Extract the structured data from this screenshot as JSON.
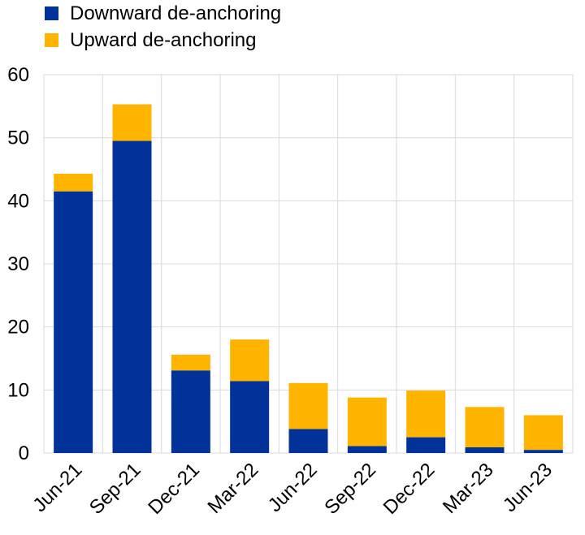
{
  "chart_data": {
    "type": "bar",
    "stacked": true,
    "title": "",
    "xlabel": "",
    "ylabel": "",
    "categories": [
      "Jun-21",
      "Sep-21",
      "Dec-21",
      "Mar-22",
      "Jun-22",
      "Sep-22",
      "Dec-22",
      "Mar-23",
      "Jun-23"
    ],
    "series": [
      {
        "name": "Downward de-anchoring",
        "color": "#003299",
        "values": [
          41.5,
          49.5,
          13.1,
          11.4,
          3.8,
          1.1,
          2.5,
          0.9,
          0.5
        ]
      },
      {
        "name": "Upward de-anchoring",
        "color": "#FFB400",
        "values": [
          2.8,
          5.8,
          2.5,
          6.6,
          7.3,
          7.7,
          7.4,
          6.4,
          5.5
        ]
      }
    ],
    "ylim": [
      0,
      60
    ],
    "yticks": [
      0,
      10,
      20,
      30,
      40,
      50,
      60
    ],
    "grid": true,
    "legend_position": "top-left"
  }
}
